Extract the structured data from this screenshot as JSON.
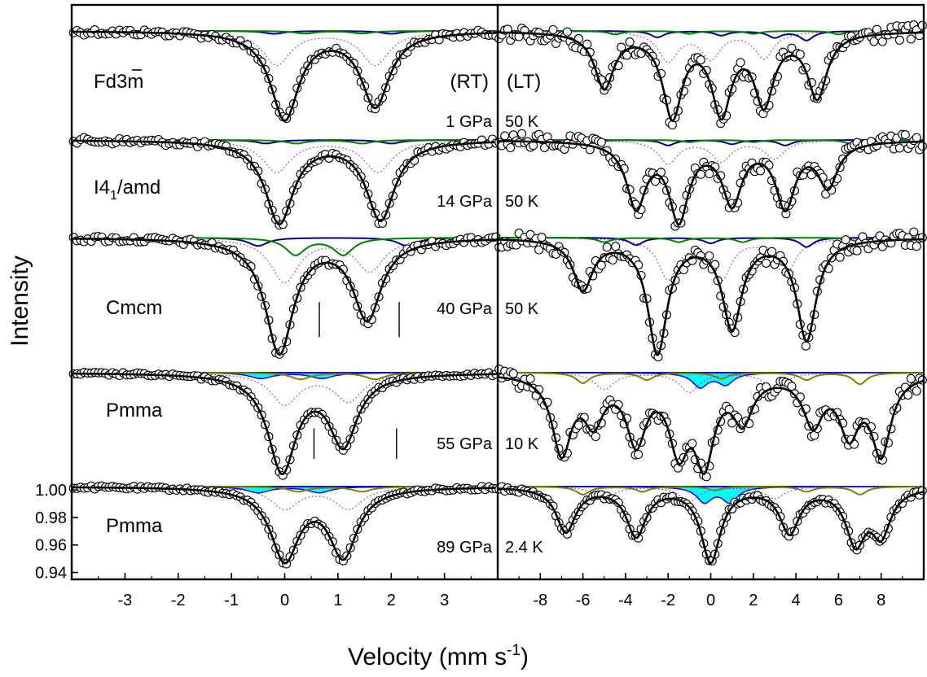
{
  "figure": {
    "ylabel": "Intensity",
    "xlabel_main": "Velocity (mm s",
    "xlabel_sup": "-1",
    "xlabel_end": ")",
    "rt_header": "(RT)",
    "lt_header": "(LT)",
    "colors": {
      "frame": "#000000",
      "fit_total": "#000000",
      "data_points": "#000000",
      "site_blue": "#000080",
      "site_green": "#008000",
      "site_olive": "#808000",
      "site_cyan_fill": "#00ffff",
      "subspectrum_dotted": "#9932cc",
      "bright_blue": "#0000ff"
    }
  },
  "chart_data": [
    {
      "type": "line",
      "subtype": "mossbauer-stack",
      "id": "RT",
      "xlim": [
        -4,
        4
      ],
      "xticks": [
        -3,
        -2,
        -1,
        0,
        1,
        2,
        3
      ],
      "x_tick_labels": [
        "-3",
        "-2",
        "-1",
        "0",
        "1",
        "2",
        "3"
      ],
      "ylim_bottom_panel": [
        0.935,
        1.006
      ],
      "yticks": [
        0.94,
        0.96,
        0.98,
        1.0
      ],
      "y_tick_labels": [
        "0.94",
        "0.96",
        "0.98",
        "1.00"
      ],
      "panels": [
        {
          "phase": "Fd3m",
          "condition": "1 GPa",
          "sites": [
            {
              "color": "blue",
              "dips": [
                [
                  -0.2,
                  0.1
                ],
                [
                  2.0,
                  0.1
                ]
              ]
            },
            {
              "color": "green",
              "dips": [
                [
                  0.38,
                  0.09
                ],
                [
                  1.45,
                  0.09
                ]
              ]
            }
          ],
          "dotted_dips": [
            [
              -0.15,
              0.6
            ],
            [
              1.7,
              0.6
            ]
          ],
          "total_dips": [
            [
              0.0,
              1.0
            ],
            [
              1.7,
              0.85
            ]
          ],
          "depth_fraction": 0.85
        },
        {
          "phase": "I41/amd",
          "condition": "14 GPa",
          "sites": [
            {
              "color": "blue",
              "dips": [
                [
                  -0.35,
                  0.13
                ],
                [
                  2.0,
                  0.13
                ]
              ]
            },
            {
              "color": "green",
              "dips": [
                [
                  0.22,
                  0.13
                ],
                [
                  1.45,
                  0.13
                ]
              ]
            }
          ],
          "dotted_dips": [
            [
              -0.15,
              0.6
            ],
            [
              1.75,
              0.6
            ]
          ],
          "total_dips": [
            [
              -0.1,
              1.0
            ],
            [
              1.8,
              0.96
            ]
          ],
          "depth_fraction": 0.88
        },
        {
          "phase": "Cmcm",
          "condition": "40 GPa",
          "sites": [
            {
              "color": "blue",
              "dips": [
                [
                  -0.5,
                  0.22
                ],
                [
                  2.3,
                  0.22
                ]
              ]
            },
            {
              "color": "green",
              "dips": [
                [
                  0.2,
                  0.45
                ],
                [
                  1.1,
                  0.45
                ]
              ]
            }
          ],
          "dotted_dips": [
            [
              0.0,
              0.6
            ],
            [
              1.6,
              0.45
            ]
          ],
          "total_dips": [
            [
              -0.1,
              1.0
            ],
            [
              1.55,
              0.7
            ]
          ],
          "tick_marks_x": [
            0.65,
            2.15
          ],
          "depth_fraction": 0.9
        },
        {
          "phase": "Pmma",
          "condition": "55 GPa",
          "sites": [
            {
              "color": "olive",
              "dips": [
                [
                  0.3,
                  0.2
                ],
                [
                  1.7,
                  0.2
                ]
              ]
            }
          ],
          "cyan_dips": [
            [
              -0.45,
              0.2
            ],
            [
              0.7,
              0.2
            ]
          ],
          "dotted_dips": [
            [
              0.0,
              0.5
            ],
            [
              1.2,
              0.45
            ]
          ],
          "total_dips": [
            [
              -0.05,
              1.0
            ],
            [
              1.1,
              0.72
            ]
          ],
          "tick_marks_x": [
            0.55,
            2.1
          ],
          "depth_fraction": 0.82
        },
        {
          "phase": "Pmma",
          "condition": "89 GPa",
          "sites": [
            {
              "color": "olive",
              "dips": [
                [
                  0.25,
                  0.2
                ],
                [
                  1.45,
                  0.2
                ]
              ]
            }
          ],
          "cyan_dips": [
            [
              -0.5,
              0.28
            ],
            [
              0.65,
              0.28
            ]
          ],
          "dotted_dips": [
            [
              0.0,
              0.45
            ],
            [
              1.2,
              0.45
            ]
          ],
          "total_dips": [
            [
              0.0,
              0.95
            ],
            [
              1.1,
              0.9
            ]
          ],
          "depth_fraction": 0.8
        }
      ]
    },
    {
      "type": "line",
      "subtype": "mossbauer-stack",
      "id": "LT",
      "xlim": [
        -10,
        10
      ],
      "xticks": [
        -8,
        -6,
        -4,
        -2,
        0,
        2,
        4,
        6,
        8
      ],
      "x_tick_labels": [
        "-8",
        "-6",
        "-4",
        "-2",
        "0",
        "2",
        "4",
        "6",
        "8"
      ],
      "panels": [
        {
          "condition": "50 K",
          "sites": [
            {
              "color": "blue",
              "dips": [
                [
                  -2.5,
                  0.22
                ],
                [
                  0.5,
                  0.15
                ],
                [
                  3.0,
                  0.22
                ],
                [
                  4.5,
                  0.32
                ]
              ]
            },
            {
              "color": "green",
              "dips": [
                [
                  -4.5,
                  0.12
                ],
                [
                  -1.0,
                  0.1
                ],
                [
                  2.0,
                  0.1
                ],
                [
                  6.0,
                  0.12
                ]
              ]
            }
          ],
          "dotted_dips": [
            [
              -2.0,
              0.5
            ],
            [
              0.0,
              0.45
            ],
            [
              2.5,
              0.45
            ]
          ],
          "total_dips": [
            [
              -5.0,
              0.6
            ],
            [
              -1.8,
              0.9
            ],
            [
              0.5,
              0.85
            ],
            [
              2.5,
              0.75
            ],
            [
              5.0,
              0.7
            ]
          ],
          "depth_fraction": 0.85
        },
        {
          "condition": "50 K",
          "sites": [
            {
              "color": "blue",
              "dips": [
                [
                  -2.0,
                  0.2
                ],
                [
                  1.0,
                  0.15
                ],
                [
                  3.5,
                  0.2
                ]
              ]
            },
            {
              "color": "green",
              "dips": [
                [
                  -5.5,
                  0.12
                ],
                [
                  -1.0,
                  0.08
                ],
                [
                  2.0,
                  0.08
                ],
                [
                  6.5,
                  0.12
                ]
              ]
            }
          ],
          "dotted_dips": [
            [
              -2.0,
              0.45
            ],
            [
              0.5,
              0.4
            ],
            [
              3.0,
              0.35
            ]
          ],
          "total_dips": [
            [
              -3.5,
              0.8
            ],
            [
              -1.5,
              0.95
            ],
            [
              1.0,
              0.75
            ],
            [
              3.5,
              0.8
            ],
            [
              5.5,
              0.55
            ]
          ],
          "depth_fraction": 0.88
        },
        {
          "condition": "50 K",
          "sites": [
            {
              "color": "blue",
              "dips": [
                [
                  -3.5,
                  0.2
                ],
                [
                  0.0,
                  0.15
                ],
                [
                  4.5,
                  0.25
                ]
              ]
            },
            {
              "color": "green",
              "dips": [
                [
                  -5.0,
                  0.12
                ],
                [
                  -1.5,
                  0.12
                ],
                [
                  1.5,
                  0.12
                ],
                [
                  7.0,
                  0.12
                ]
              ]
            }
          ],
          "dotted_dips": [
            [
              -2.0,
              0.5
            ],
            [
              0.5,
              0.5
            ],
            [
              3.5,
              0.45
            ]
          ],
          "total_dips": [
            [
              -6.0,
              0.4
            ],
            [
              -2.5,
              0.9
            ],
            [
              1.0,
              0.7
            ],
            [
              4.5,
              0.8
            ]
          ],
          "depth_fraction": 0.9
        },
        {
          "condition": "10 K",
          "sites": [
            {
              "color": "olive",
              "dips": [
                [
                  -6.0,
                  0.32
                ],
                [
                  -3.0,
                  0.22
                ],
                [
                  0.5,
                  0.18
                ],
                [
                  4.5,
                  0.22
                ],
                [
                  7.0,
                  0.35
                ]
              ]
            }
          ],
          "cyan_dips": [
            [
              -0.5,
              0.5
            ],
            [
              0.7,
              0.4
            ]
          ],
          "dotted_dips": [
            [
              -5.0,
              0.3
            ],
            [
              -1.0,
              0.35
            ],
            [
              3.0,
              0.3
            ]
          ],
          "total_dips": [
            [
              -7.0,
              0.9
            ],
            [
              -5.5,
              0.5
            ],
            [
              -3.5,
              0.75
            ],
            [
              -1.5,
              0.8
            ],
            [
              -0.3,
              0.95
            ],
            [
              1.5,
              0.5
            ],
            [
              4.8,
              0.55
            ],
            [
              6.5,
              0.65
            ],
            [
              8.0,
              0.9
            ]
          ],
          "depth_fraction": 0.82
        },
        {
          "condition": "2.4 K",
          "sites": [
            {
              "color": "olive",
              "dips": [
                [
                  -6.0,
                  0.32
                ],
                [
                  -3.2,
                  0.2
                ],
                [
                  0.2,
                  0.15
                ],
                [
                  4.5,
                  0.2
                ],
                [
                  7.0,
                  0.32
                ]
              ]
            }
          ],
          "cyan_dips": [
            [
              -0.3,
              0.7
            ],
            [
              0.9,
              0.7
            ]
          ],
          "dotted_dips": [
            [
              -5.0,
              0.25
            ],
            [
              -1.0,
              0.3
            ],
            [
              3.0,
              0.25
            ]
          ],
          "total_dips": [
            [
              -6.8,
              0.6
            ],
            [
              -3.5,
              0.65
            ],
            [
              0.0,
              1.0
            ],
            [
              3.7,
              0.6
            ],
            [
              6.8,
              0.72
            ],
            [
              8.0,
              0.6
            ]
          ],
          "depth_fraction": 0.8
        }
      ]
    }
  ]
}
